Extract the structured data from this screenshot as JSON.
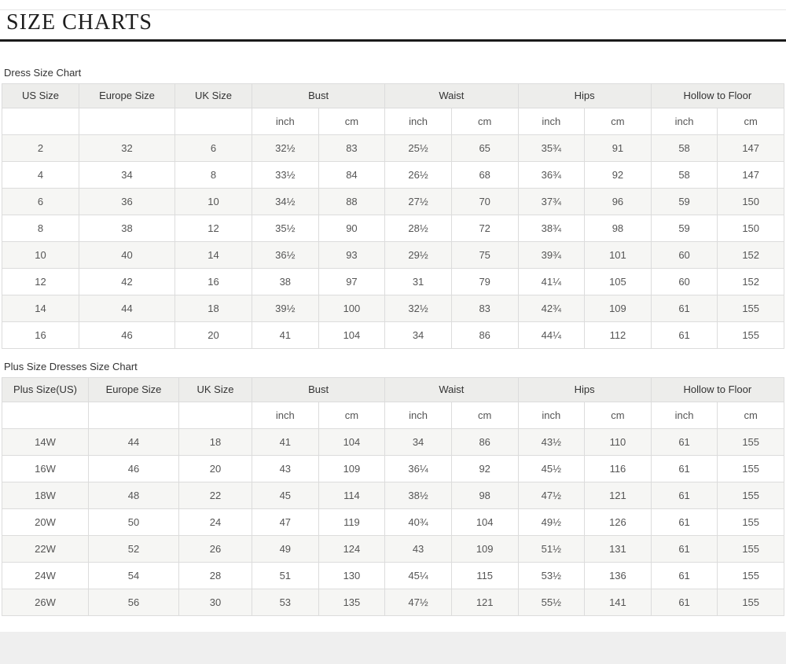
{
  "title": "SIZE CHARTS",
  "units": {
    "inch": "inch",
    "cm": "cm"
  },
  "colors": {
    "title_rule": "#1b1b1b",
    "header_bg": "#ededeb",
    "stripe_bg": "#f6f6f4",
    "border": "#dcdcdc",
    "footer_bg": "#efefef",
    "text": "#555555"
  },
  "tables": [
    {
      "label": "Dress Size Chart",
      "header": [
        "US Size",
        "Europe Size",
        "UK Size",
        "Bust",
        "Waist",
        "Hips",
        "Hollow to Floor"
      ],
      "rows": [
        [
          "2",
          "32",
          "6",
          "32½",
          "83",
          "25½",
          "65",
          "35¾",
          "91",
          "58",
          "147"
        ],
        [
          "4",
          "34",
          "8",
          "33½",
          "84",
          "26½",
          "68",
          "36¾",
          "92",
          "58",
          "147"
        ],
        [
          "6",
          "36",
          "10",
          "34½",
          "88",
          "27½",
          "70",
          "37¾",
          "96",
          "59",
          "150"
        ],
        [
          "8",
          "38",
          "12",
          "35½",
          "90",
          "28½",
          "72",
          "38¾",
          "98",
          "59",
          "150"
        ],
        [
          "10",
          "40",
          "14",
          "36½",
          "93",
          "29½",
          "75",
          "39¾",
          "101",
          "60",
          "152"
        ],
        [
          "12",
          "42",
          "16",
          "38",
          "97",
          "31",
          "79",
          "41¼",
          "105",
          "60",
          "152"
        ],
        [
          "14",
          "44",
          "18",
          "39½",
          "100",
          "32½",
          "83",
          "42¾",
          "109",
          "61",
          "155"
        ],
        [
          "16",
          "46",
          "20",
          "41",
          "104",
          "34",
          "86",
          "44¼",
          "112",
          "61",
          "155"
        ]
      ]
    },
    {
      "label": "Plus Size Dresses Size Chart",
      "header": [
        "Plus Size(US)",
        "Europe Size",
        "UK Size",
        "Bust",
        "Waist",
        "Hips",
        "Hollow to Floor"
      ],
      "rows": [
        [
          "14W",
          "44",
          "18",
          "41",
          "104",
          "34",
          "86",
          "43½",
          "110",
          "61",
          "155"
        ],
        [
          "16W",
          "46",
          "20",
          "43",
          "109",
          "36¼",
          "92",
          "45½",
          "116",
          "61",
          "155"
        ],
        [
          "18W",
          "48",
          "22",
          "45",
          "114",
          "38½",
          "98",
          "47½",
          "121",
          "61",
          "155"
        ],
        [
          "20W",
          "50",
          "24",
          "47",
          "119",
          "40¾",
          "104",
          "49½",
          "126",
          "61",
          "155"
        ],
        [
          "22W",
          "52",
          "26",
          "49",
          "124",
          "43",
          "109",
          "51½",
          "131",
          "61",
          "155"
        ],
        [
          "24W",
          "54",
          "28",
          "51",
          "130",
          "45¼",
          "115",
          "53½",
          "136",
          "61",
          "155"
        ],
        [
          "26W",
          "56",
          "30",
          "53",
          "135",
          "47½",
          "121",
          "55½",
          "141",
          "61",
          "155"
        ]
      ]
    }
  ],
  "chart_data": {
    "type": "table",
    "title": "SIZE CHARTS",
    "tables": [
      "Dress Size Chart",
      "Plus Size Dresses Size Chart"
    ]
  }
}
